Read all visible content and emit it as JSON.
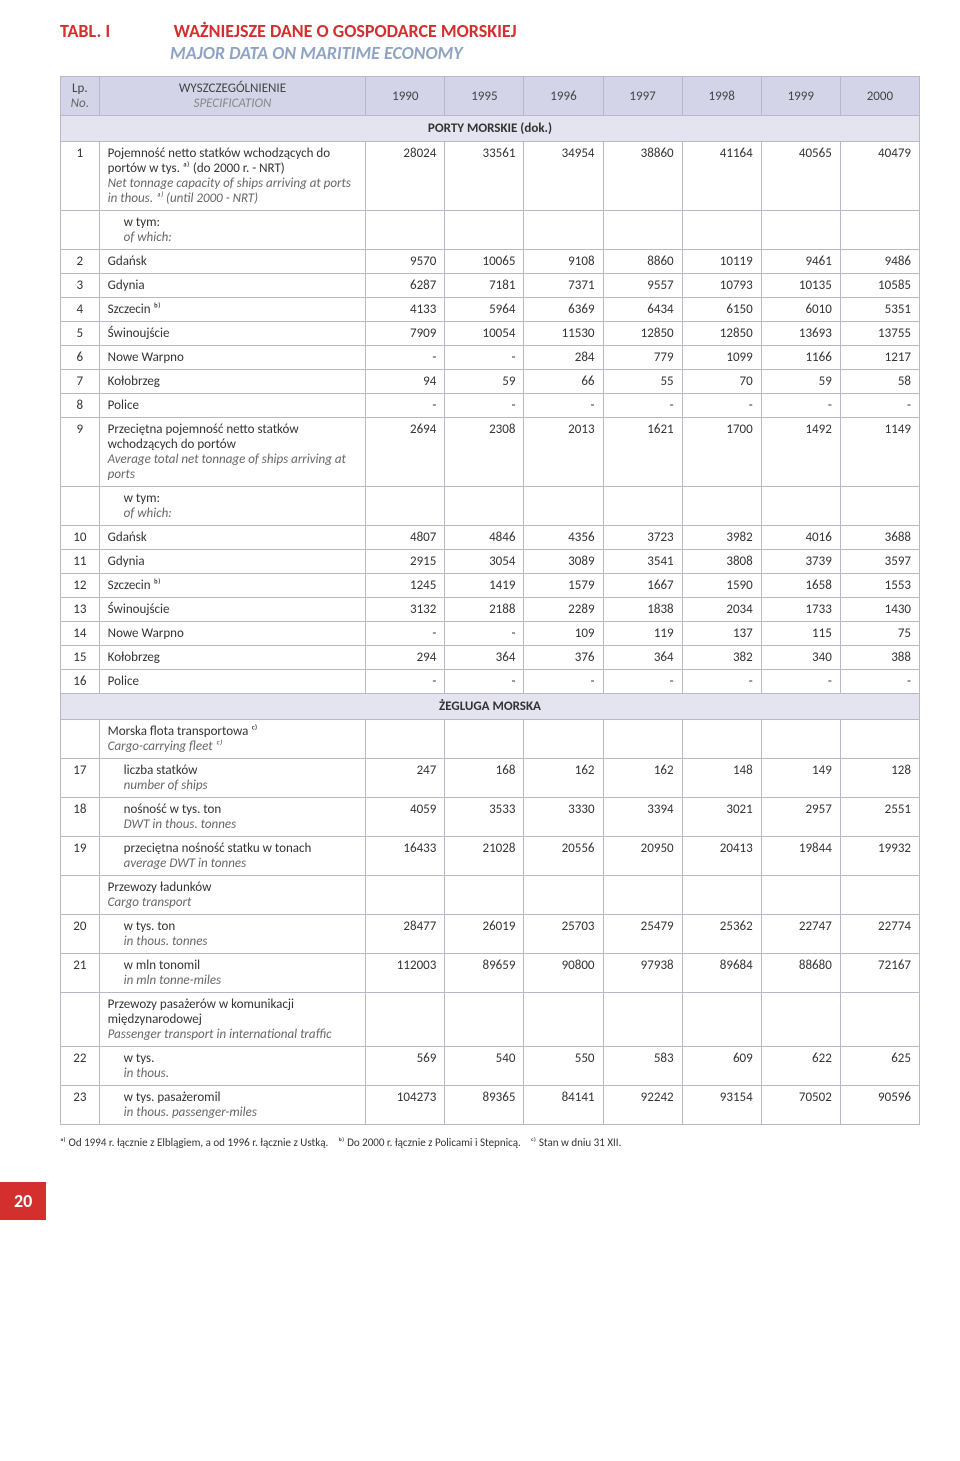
{
  "title": {
    "label": "TABL. I",
    "pl": "WAŻNIEJSZE DANE O GOSPODARCE MORSKIEJ",
    "en": "MAJOR DATA ON MARITIME ECONOMY"
  },
  "header": {
    "lp_pl": "Lp.",
    "lp_en": "No.",
    "spec_pl": "WYSZCZEGÓLNIENIE",
    "spec_en": "SPECIFICATION",
    "years": [
      "1990",
      "1995",
      "1996",
      "1997",
      "1998",
      "1999",
      "2000"
    ]
  },
  "section1": {
    "title": "PORTY MORSKIE (dok.)"
  },
  "rows1": [
    {
      "lp": "1",
      "spec_pl": "Pojemność netto statków wchodzą­cych do portów w tys. ᵃ⁾ (do 2000 r. - NRT)",
      "spec_en": "Net tonnage capacity of ships arriving at ports in thous. ᵃ⁾ (until 2000 - NRT)",
      "v": [
        "28024",
        "33561",
        "34954",
        "38860",
        "41164",
        "40565",
        "40479"
      ]
    },
    {
      "lp": "",
      "spec_pl": "w tym:",
      "spec_en": "of which:",
      "indent": true,
      "v": [
        "",
        "",
        "",
        "",
        "",
        "",
        ""
      ]
    },
    {
      "lp": "2",
      "spec_pl": "Gdańsk",
      "v": [
        "9570",
        "10065",
        "9108",
        "8860",
        "10119",
        "9461",
        "9486"
      ]
    },
    {
      "lp": "3",
      "spec_pl": "Gdynia",
      "v": [
        "6287",
        "7181",
        "7371",
        "9557",
        "10793",
        "10135",
        "10585"
      ]
    },
    {
      "lp": "4",
      "spec_pl": "Szczecin ᵇ⁾",
      "v": [
        "4133",
        "5964",
        "6369",
        "6434",
        "6150",
        "6010",
        "5351"
      ]
    },
    {
      "lp": "5",
      "spec_pl": "Świnoujście",
      "v": [
        "7909",
        "10054",
        "11530",
        "12850",
        "12850",
        "13693",
        "13755"
      ]
    },
    {
      "lp": "6",
      "spec_pl": "Nowe Warpno",
      "v": [
        "-",
        "-",
        "284",
        "779",
        "1099",
        "1166",
        "1217"
      ]
    },
    {
      "lp": "7",
      "spec_pl": "Kołobrzeg",
      "v": [
        "94",
        "59",
        "66",
        "55",
        "70",
        "59",
        "58"
      ]
    },
    {
      "lp": "8",
      "spec_pl": "Police",
      "v": [
        "-",
        "-",
        "-",
        "-",
        "-",
        "-",
        "-"
      ]
    }
  ],
  "rows2": [
    {
      "lp": "9",
      "spec_pl": "Przeciętna pojemność netto statków wchodzących do portów",
      "spec_en": "Average total net tonnage of ships arriving at ports",
      "v": [
        "2694",
        "2308",
        "2013",
        "1621",
        "1700",
        "1492",
        "1149"
      ]
    },
    {
      "lp": "",
      "spec_pl": "w tym:",
      "spec_en": "of which:",
      "indent": true,
      "v": [
        "",
        "",
        "",
        "",
        "",
        "",
        ""
      ]
    },
    {
      "lp": "10",
      "spec_pl": "Gdańsk",
      "v": [
        "4807",
        "4846",
        "4356",
        "3723",
        "3982",
        "4016",
        "3688"
      ]
    },
    {
      "lp": "11",
      "spec_pl": "Gdynia",
      "v": [
        "2915",
        "3054",
        "3089",
        "3541",
        "3808",
        "3739",
        "3597"
      ]
    },
    {
      "lp": "12",
      "spec_pl": "Szczecin ᵇ⁾",
      "v": [
        "1245",
        "1419",
        "1579",
        "1667",
        "1590",
        "1658",
        "1553"
      ]
    },
    {
      "lp": "13",
      "spec_pl": "Świnoujście",
      "v": [
        "3132",
        "2188",
        "2289",
        "1838",
        "2034",
        "1733",
        "1430"
      ]
    },
    {
      "lp": "14",
      "spec_pl": "Nowe Warpno",
      "v": [
        "-",
        "-",
        "109",
        "119",
        "137",
        "115",
        "75"
      ]
    },
    {
      "lp": "15",
      "spec_pl": "Kołobrzeg",
      "v": [
        "294",
        "364",
        "376",
        "364",
        "382",
        "340",
        "388"
      ]
    },
    {
      "lp": "16",
      "spec_pl": "Police",
      "v": [
        "-",
        "-",
        "-",
        "-",
        "-",
        "-",
        "-"
      ]
    }
  ],
  "section2": {
    "title": "ŻEGLUGA MORSKA"
  },
  "rows3": [
    {
      "lp": "",
      "spec_pl": "Morska flota transportowa ᶜ⁾",
      "spec_en": "Cargo-carrying fleet ᶜ⁾",
      "v": [
        "",
        "",
        "",
        "",
        "",
        "",
        ""
      ]
    },
    {
      "lp": "17",
      "spec_pl": "liczba statków",
      "spec_en": "number of ships",
      "indent": true,
      "v": [
        "247",
        "168",
        "162",
        "162",
        "148",
        "149",
        "128"
      ]
    },
    {
      "lp": "18",
      "spec_pl": "nośność w tys. ton",
      "spec_en": "DWT in thous. tonnes",
      "indent": true,
      "v": [
        "4059",
        "3533",
        "3330",
        "3394",
        "3021",
        "2957",
        "2551"
      ]
    },
    {
      "lp": "19",
      "spec_pl": "przeciętna nośność statku w tonach",
      "spec_en": "average DWT in tonnes",
      "indent": true,
      "v": [
        "16433",
        "21028",
        "20556",
        "20950",
        "20413",
        "19844",
        "19932"
      ]
    },
    {
      "lp": "",
      "spec_pl": "Przewozy ładunków",
      "spec_en": "Cargo transport",
      "v": [
        "",
        "",
        "",
        "",
        "",
        "",
        ""
      ]
    },
    {
      "lp": "20",
      "spec_pl": "w tys. ton",
      "spec_en": "in thous. tonnes",
      "indent": true,
      "v": [
        "28477",
        "26019",
        "25703",
        "25479",
        "25362",
        "22747",
        "22774"
      ]
    },
    {
      "lp": "21",
      "spec_pl": "w mln tonomil",
      "spec_en": "in mln tonne-miles",
      "indent": true,
      "v": [
        "112003",
        "89659",
        "90800",
        "97938",
        "89684",
        "88680",
        "72167"
      ]
    },
    {
      "lp": "",
      "spec_pl": "Przewozy pasażerów w komunikacji międzynarodowej",
      "spec_en": "Passenger transport in international traffic",
      "v": [
        "",
        "",
        "",
        "",
        "",
        "",
        ""
      ]
    },
    {
      "lp": "22",
      "spec_pl": "w tys.",
      "spec_en": "in thous.",
      "indent": true,
      "v": [
        "569",
        "540",
        "550",
        "583",
        "609",
        "622",
        "625"
      ]
    },
    {
      "lp": "23",
      "spec_pl": "w tys. pasażeromil",
      "spec_en": "in thous. passenger-miles",
      "indent": true,
      "v": [
        "104273",
        "89365",
        "84141",
        "92242",
        "93154",
        "70502",
        "90596"
      ]
    }
  ],
  "footnote": {
    "a": "ᵃ⁾ Od 1994 r. łącznie z Elblągiem, a od 1996 r. łącznie z Ustką.",
    "b": "ᵇ⁾ Do 2000 r. łącznie z Policami i Stepnicą.",
    "c": "ᶜ⁾ Stan w dniu 31 XII."
  },
  "page_number": "20"
}
